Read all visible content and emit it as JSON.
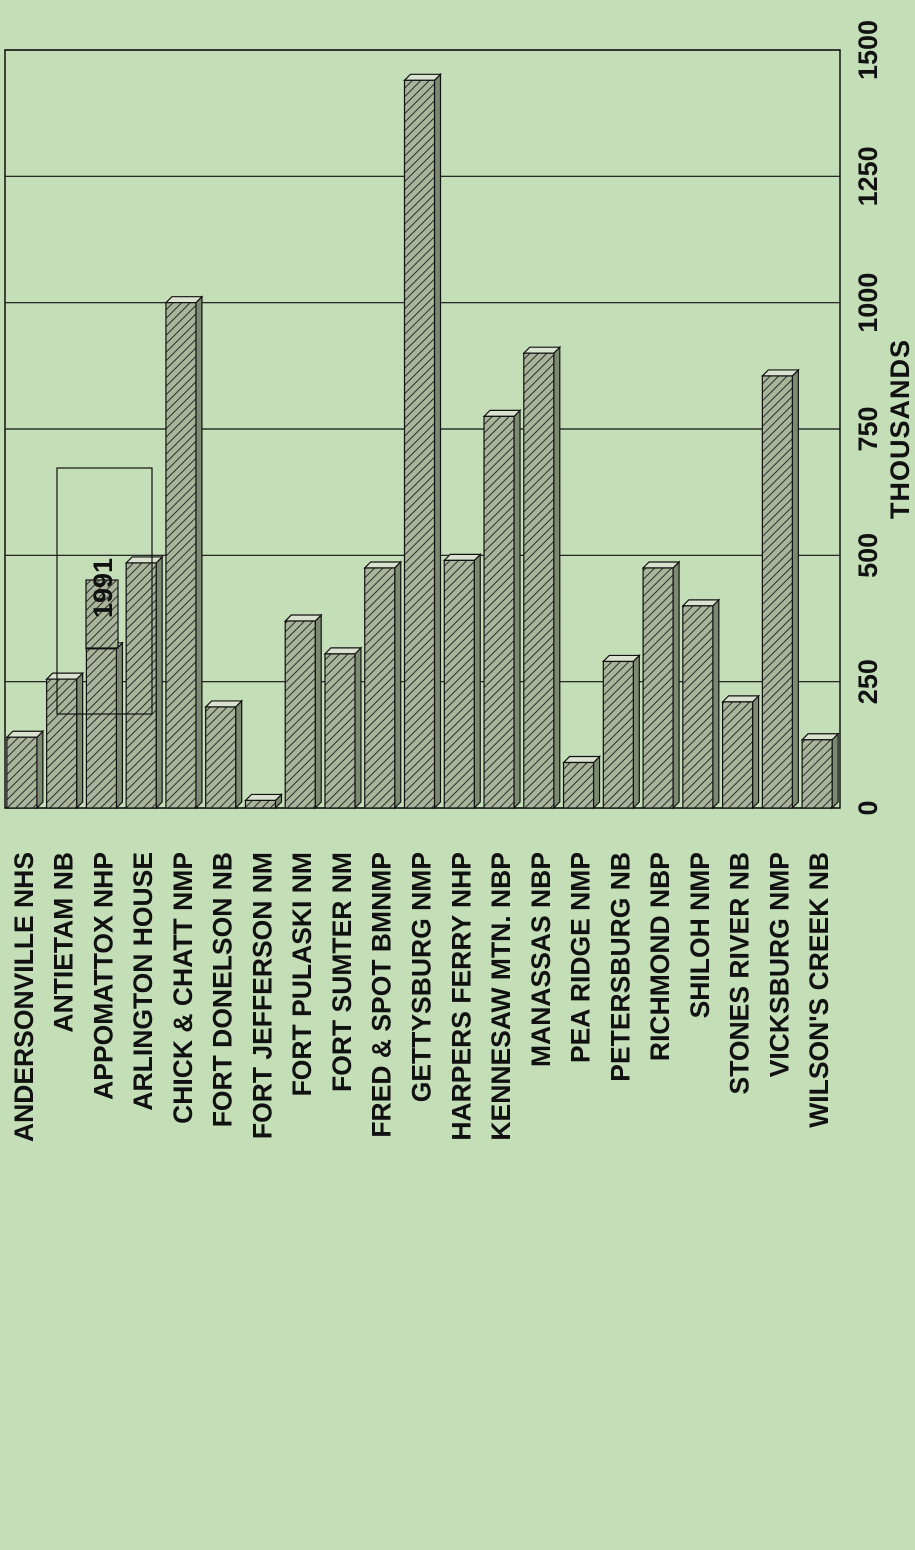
{
  "colors": {
    "background": "#c4deb8",
    "bar_fill": "#a9b59b",
    "bar_hatch": "#2c2c2c",
    "bar_top": "#d9e2cf",
    "bar_side": "#7d8a72",
    "line": "#111111"
  },
  "chart_data": {
    "type": "bar",
    "orientation": "horizontal",
    "rotation": "page rotated 90 degrees counter-clockwise",
    "categories": [
      "ANDERSONVILLE NHS",
      "ANTIETAM NB",
      "APPOMATTOX NHP",
      "ARLINGTON HOUSE",
      "CHICK & CHATT NMP",
      "FORT DONELSON NB",
      "FORT JEFFERSON NM",
      "FORT PULASKI NM",
      "FORT SUMTER NM",
      "FRED & SPOT BMNMP",
      "GETTYSBURG NMP",
      "HARPERS FERRY NHP",
      "KENNESAW MTN. NBP",
      "MANASSAS NBP",
      "PEA RIDGE NMP",
      "PETERSBURG NB",
      "RICHMOND NBP",
      "SHILOH NMP",
      "STONES RIVER NB",
      "VICKSBURG NMP",
      "WILSON'S CREEK NB"
    ],
    "series": [
      {
        "name": "1991",
        "pattern": "diagonal-hatch",
        "values": [
          140,
          255,
          315,
          485,
          1000,
          200,
          15,
          370,
          305,
          475,
          1440,
          490,
          775,
          900,
          90,
          290,
          475,
          400,
          210,
          855,
          135
        ]
      }
    ],
    "value_axis": {
      "label": "THOUSANDS",
      "range": [
        0,
        1500
      ],
      "ticks": [
        0,
        250,
        500,
        750,
        1000,
        1250,
        1500
      ],
      "tick_labels": [
        "0",
        "250",
        "500",
        "750",
        "1000",
        "1250",
        "1500"
      ]
    },
    "grid": true,
    "legend": {
      "position": "upper-middle",
      "entries": [
        "1991"
      ]
    }
  }
}
